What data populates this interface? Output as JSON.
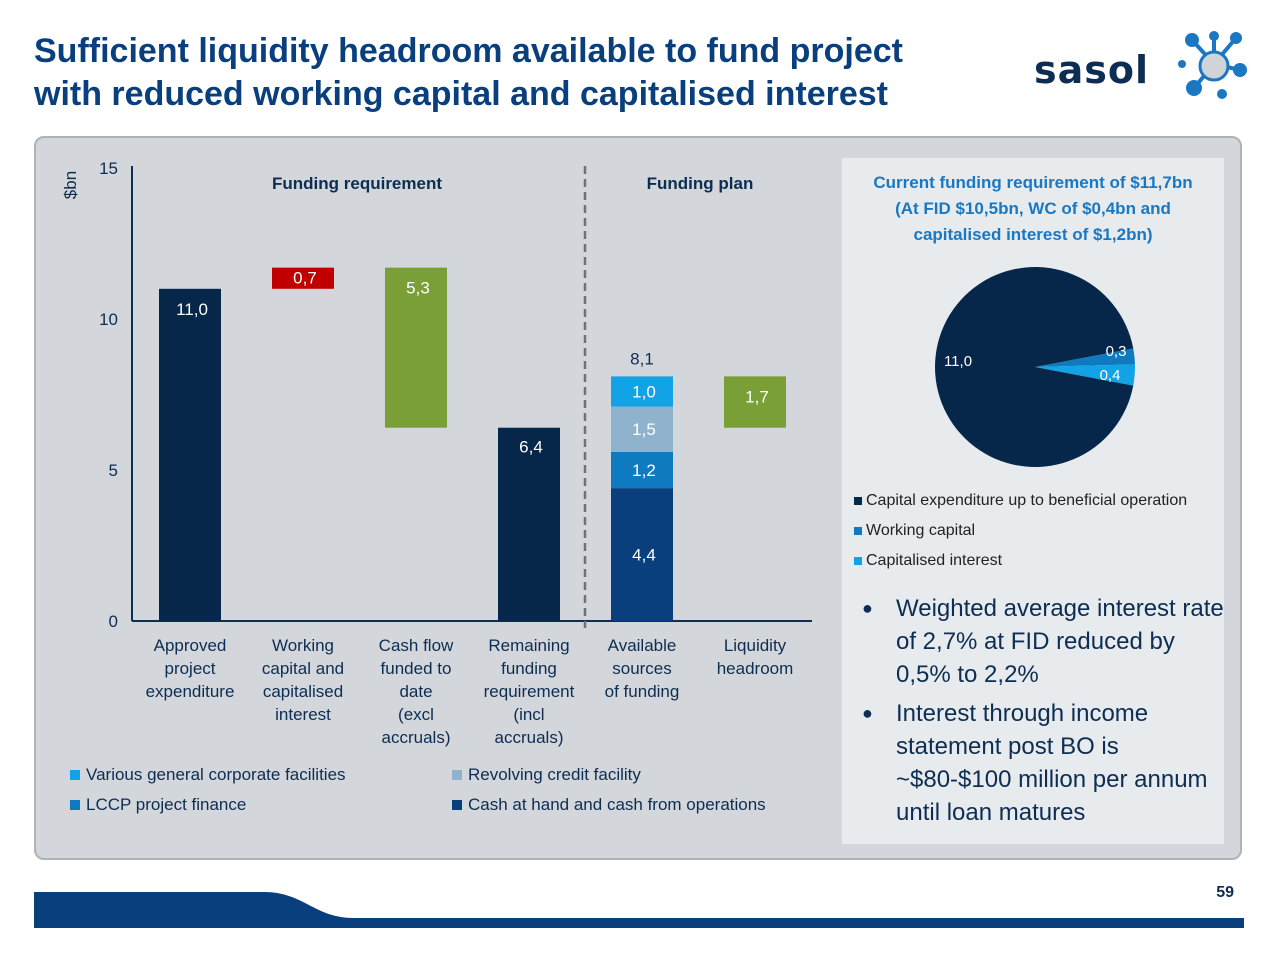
{
  "slide": {
    "title_line1": "Sufficient liquidity headroom available to fund project",
    "title_line2": "with reduced working capital and capitalised interest",
    "logo_text": "sasol",
    "page_number": "59"
  },
  "colors": {
    "title": "#0a3f7e",
    "dark_navy": "#06264a",
    "red": "#c00000",
    "green": "#7a9f36",
    "lccp_blue": "#0e7abf",
    "revolver_grey_blue": "#8fb3cc",
    "bright_blue": "#12a2e6",
    "cash_blue": "#0a3f7e"
  },
  "chart_data": [
    {
      "type": "bar",
      "subtype": "waterfall",
      "ylabel": "$bn",
      "ylim": [
        0,
        15
      ],
      "yticks": [
        "0",
        "5",
        "10",
        "15"
      ],
      "section_labels": [
        "Funding requirement",
        "Funding plan"
      ],
      "categories": [
        [
          "Approved",
          "project",
          "expenditure"
        ],
        [
          "Working",
          "capital and",
          "capitalised",
          "interest"
        ],
        [
          "Cash flow",
          "funded to",
          "date",
          "(excl",
          "accruals)"
        ],
        [
          "Remaining",
          "funding",
          "requirement",
          "(incl",
          "accruals)"
        ],
        [
          "Available",
          "sources",
          "of funding"
        ],
        [
          "Liquidity",
          "headroom"
        ]
      ],
      "bars": [
        {
          "label": "11,0",
          "base": 0,
          "value": 11.0,
          "color": "#06264a"
        },
        {
          "label": "0,7",
          "base": 11.0,
          "value": 0.7,
          "color": "#c00000"
        },
        {
          "label": "5,3",
          "base": 6.4,
          "value": 5.3,
          "color": "#7a9f36"
        },
        {
          "label": "6,4",
          "base": 0,
          "value": 6.4,
          "color": "#06264a"
        },
        {
          "label": "1,7",
          "base": 6.4,
          "value": 1.7,
          "color": "#7a9f36"
        }
      ],
      "stacked_bar": {
        "category_index": 4,
        "total_label": "8,1",
        "segments": [
          {
            "name": "Cash at hand and cash from operations",
            "label": "4,4",
            "value": 4.4,
            "color": "#0a3f7e"
          },
          {
            "name": "LCCP project finance",
            "label": "1,2",
            "value": 1.2,
            "color": "#0e7abf"
          },
          {
            "name": "Revolving credit facility",
            "label": "1,5",
            "value": 1.5,
            "color": "#8fb3cc"
          },
          {
            "name": "Various general corporate facilities",
            "label": "1,0",
            "value": 1.0,
            "color": "#12a2e6"
          }
        ]
      },
      "legend": [
        {
          "name": "Various general corporate facilities",
          "color": "#12a2e6"
        },
        {
          "name": "Revolving credit facility",
          "color": "#8fb3cc"
        },
        {
          "name": "LCCP project finance",
          "color": "#0e7abf"
        },
        {
          "name": "Cash at hand and cash from operations",
          "color": "#0a3f7e"
        }
      ]
    },
    {
      "type": "pie",
      "title_lines": [
        "Current funding requirement of $11,7bn",
        "(At FID $10,5bn, WC of $0,4bn and",
        "capitalised interest of $1,2bn)"
      ],
      "slices": [
        {
          "name": "Capital expenditure up to beneficial operation",
          "label": "11,0",
          "value": 11.0,
          "color": "#06264a"
        },
        {
          "name": "Working capital",
          "label": "0,3",
          "value": 0.3,
          "color": "#0e7abf"
        },
        {
          "name": "Capitalised interest",
          "label": "0,4",
          "value": 0.4,
          "color": "#12a2e6"
        }
      ]
    }
  ],
  "bullets": [
    "Weighted average interest rate of 2,7% at FID reduced by 0,5% to 2,2%",
    "Interest through income statement post BO is ~$80-$100 million per annum until loan matures"
  ]
}
